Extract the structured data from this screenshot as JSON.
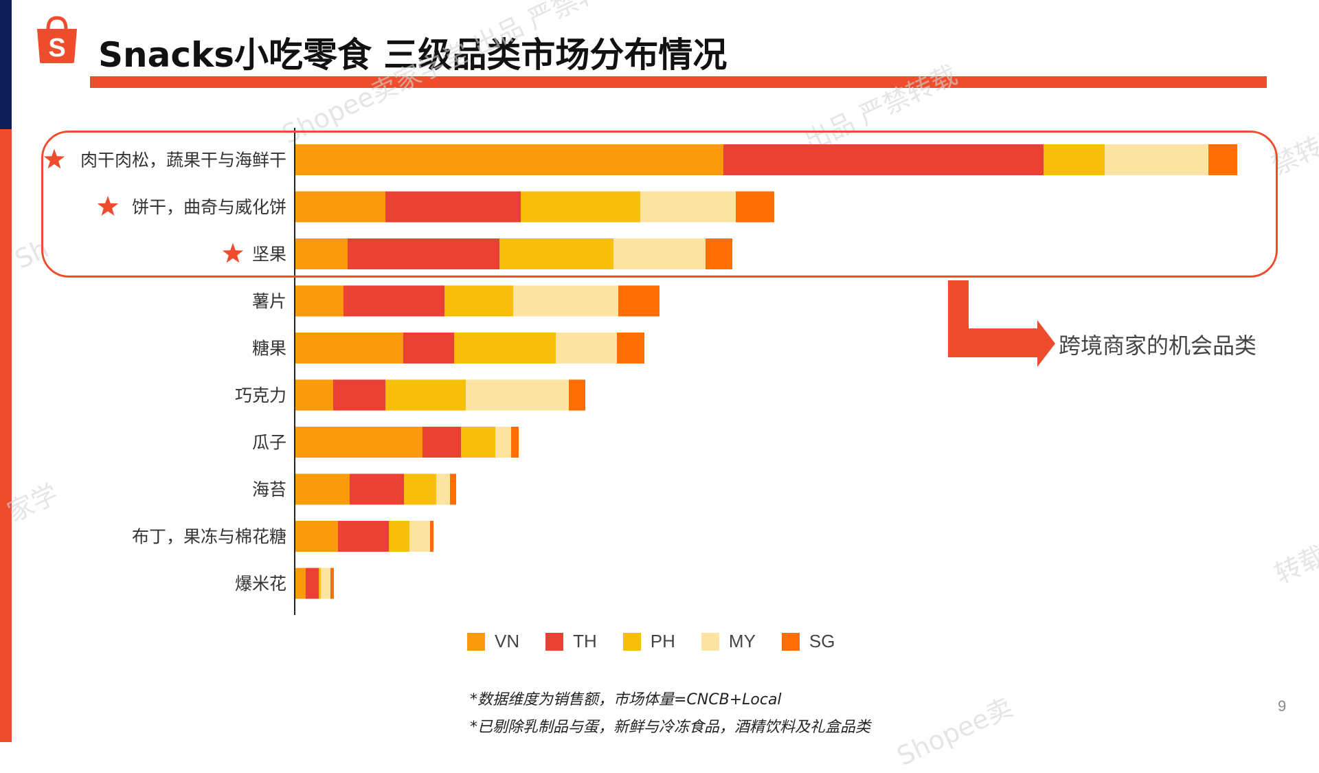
{
  "slide": {
    "title": "Snacks小吃零食 三级品类市场分布情况",
    "page_number": "9",
    "callout_text": "跨境商家的机会品类",
    "footnotes": [
      "*数据维度为销售额，市场体量=CNCB+Local",
      "*已剔除乳制品与蛋，新鲜与冷冻食品，酒精饮料及礼盒品类"
    ],
    "watermarks": [
      "Shopee卖家学堂 出品 严禁转载",
      "出品 严禁转载",
      "禁转载",
      "Sh",
      "家学",
      "转载",
      "Shopee卖"
    ],
    "logo_icon": "shopee-bag-icon",
    "colors": {
      "accent": "#ee4d2d",
      "navy": "#0d1f57"
    }
  },
  "chart_data": {
    "type": "bar",
    "orientation": "horizontal",
    "stacked": true,
    "categories": [
      "肉干肉松，蔬果干与海鲜干",
      "饼干，曲奇与威化饼",
      "坚果",
      "薯片",
      "糖果",
      "巧克力",
      "瓜子",
      "海苔",
      "布丁，果冻与棉花糖",
      "爆米花"
    ],
    "highlighted": [
      true,
      true,
      true,
      false,
      false,
      false,
      false,
      false,
      false,
      false
    ],
    "series": [
      {
        "name": "VN",
        "color": "#fb9a0a",
        "values": [
          623,
          131,
          76,
          70,
          157,
          55,
          185,
          79,
          62,
          15
        ]
      },
      {
        "name": "TH",
        "color": "#eb4034",
        "values": [
          466,
          197,
          221,
          147,
          74,
          76,
          56,
          79,
          74,
          19
        ]
      },
      {
        "name": "PH",
        "color": "#f7be0a",
        "values": [
          89,
          174,
          166,
          100,
          148,
          117,
          50,
          47,
          30,
          3
        ]
      },
      {
        "name": "MY",
        "color": "#fde4a3",
        "values": [
          151,
          139,
          134,
          153,
          89,
          150,
          23,
          20,
          30,
          14
        ]
      },
      {
        "name": "SG",
        "color": "#ff6d05",
        "values": [
          42,
          56,
          39,
          60,
          40,
          24,
          11,
          9,
          5,
          5
        ]
      }
    ],
    "legend_position": "bottom",
    "grid": false
  }
}
